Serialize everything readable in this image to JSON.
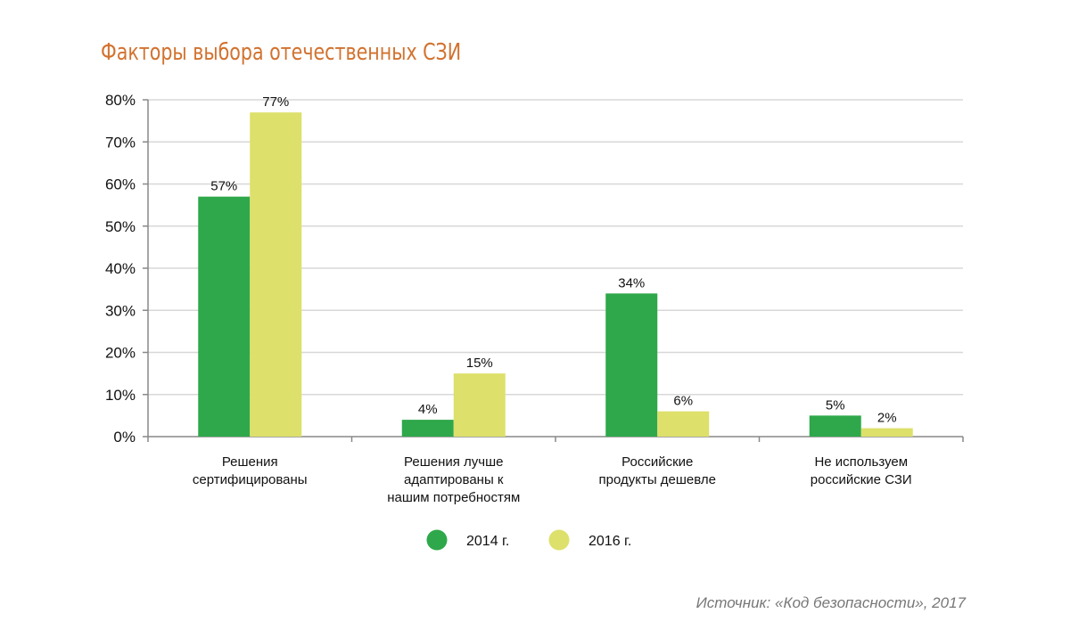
{
  "chart_data": {
    "type": "bar",
    "title": "Факторы выбора отечественных СЗИ",
    "categories": [
      [
        "Решения",
        "сертифицированы"
      ],
      [
        "Решения лучше",
        "адаптированы к",
        "нашим потребностям"
      ],
      [
        "Российские",
        "продукты дешевле"
      ],
      [
        "Не используем",
        "российские СЗИ"
      ]
    ],
    "series": [
      {
        "name": "2014 г.",
        "color": "#2ea84a",
        "values": [
          57,
          4,
          34,
          5
        ],
        "labels": [
          "57%",
          "4%",
          "34%",
          "5%"
        ]
      },
      {
        "name": "2016 г.",
        "color": "#dde06a",
        "values": [
          77,
          15,
          6,
          2
        ],
        "labels": [
          "77%",
          "15%",
          "6%",
          "2%"
        ]
      }
    ],
    "ylim": [
      0,
      80
    ],
    "yticks": [
      "0%",
      "10%",
      "20%",
      "30%",
      "40%",
      "50%",
      "60%",
      "70%",
      "80%"
    ],
    "grid": true,
    "legend_position": "bottom"
  },
  "source": "Источник: «Код безопасности», 2017"
}
